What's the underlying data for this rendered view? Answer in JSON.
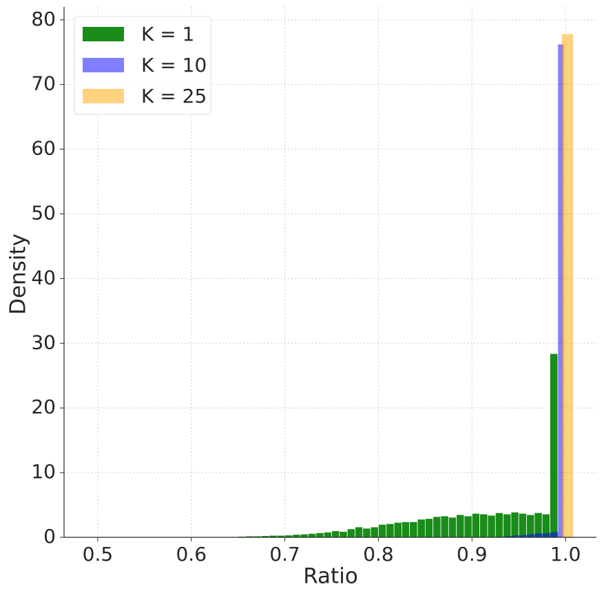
{
  "chart_data": {
    "type": "histogram",
    "xlabel": "Ratio",
    "ylabel": "Density",
    "xlim": [
      0.464,
      1.033
    ],
    "ylim": [
      0,
      82
    ],
    "xticks": [
      0.5,
      0.6,
      0.7,
      0.8,
      0.9,
      {
        "value": 1,
        "label": "1.0"
      }
    ],
    "yticks": [
      0,
      10,
      20,
      30,
      40,
      50,
      60,
      70,
      80
    ],
    "grid": true,
    "legend": "upper left",
    "series": [
      {
        "name": "K = 1",
        "color": "#008000",
        "alpha": 0.9,
        "bins": [
          0.5,
          0.5083,
          0.5167,
          0.525,
          0.5333,
          0.5417,
          0.55,
          0.5583,
          0.5667,
          0.575,
          0.5833,
          0.5917,
          0.6,
          0.6083,
          0.6167,
          0.625,
          0.6333,
          0.6417,
          0.65,
          0.6583,
          0.6667,
          0.675,
          0.6833,
          0.6917,
          0.7,
          0.7083,
          0.7167,
          0.725,
          0.7333,
          0.7417,
          0.75,
          0.7583,
          0.7667,
          0.775,
          0.7833,
          0.7917,
          0.8,
          0.8083,
          0.8167,
          0.825,
          0.8333,
          0.8417,
          0.85,
          0.8583,
          0.8667,
          0.875,
          0.8833,
          0.8917,
          0.9,
          0.9083,
          0.9167,
          0.925,
          0.9333,
          0.9417,
          0.95,
          0.9583,
          0.9667,
          0.975,
          0.9833,
          0.9917,
          1.0
        ],
        "values": [
          0,
          0,
          0,
          0,
          0,
          0,
          0,
          0,
          0,
          0,
          0,
          0,
          0,
          0,
          0,
          0,
          0.1,
          0.1,
          0.15,
          0.2,
          0.2,
          0.25,
          0.3,
          0.3,
          0.35,
          0.45,
          0.5,
          0.6,
          0.7,
          0.8,
          1.0,
          0.9,
          1.3,
          1.6,
          1.4,
          1.6,
          2.0,
          2.1,
          2.3,
          2.4,
          2.4,
          2.8,
          2.9,
          3.2,
          3.3,
          3.1,
          3.5,
          3.3,
          3.7,
          3.6,
          3.4,
          3.8,
          3.6,
          3.9,
          3.7,
          3.5,
          3.8,
          3.6,
          28.4,
          0
        ]
      },
      {
        "name": "K = 10",
        "color": "#0000ff",
        "alpha": 0.5,
        "bins": [
          0.8,
          0.806,
          0.812,
          0.818,
          0.824,
          0.83,
          0.836,
          0.842,
          0.848,
          0.854,
          0.86,
          0.866,
          0.872,
          0.878,
          0.884,
          0.89,
          0.896,
          0.902,
          0.908,
          0.914,
          0.92,
          0.926,
          0.932,
          0.938,
          0.944,
          0.95,
          0.956,
          0.962,
          0.968,
          0.974,
          0.98,
          0.986,
          0.992,
          0.998
        ],
        "values": [
          0,
          0,
          0,
          0,
          0,
          0,
          0,
          0,
          0,
          0,
          0,
          0,
          0,
          0,
          0,
          0,
          0,
          0,
          0,
          0,
          0,
          0,
          0.1,
          0.2,
          0.3,
          0.3,
          0.4,
          0.5,
          0.6,
          0.6,
          0.7,
          0.8,
          76.2
        ]
      },
      {
        "name": "K = 25",
        "color": "#ffa500",
        "alpha": 0.5,
        "bins": [
          0.996,
          1.008
        ],
        "values": [
          77.8
        ]
      }
    ]
  }
}
